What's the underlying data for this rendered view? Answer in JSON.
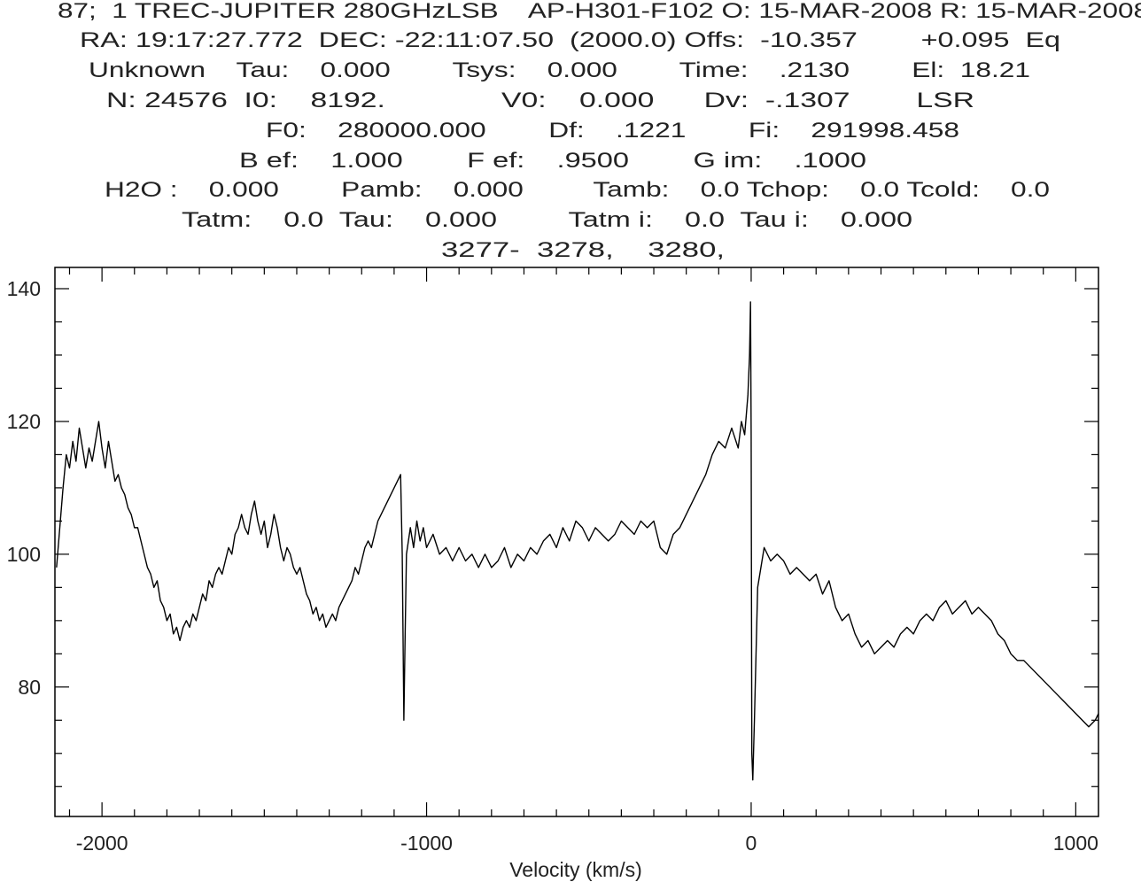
{
  "chart_data": {
    "type": "line",
    "header": [
      "87;  1 TREC-JUPITER 280GHzLSB    AP-H301-F102 O: 15-MAR-2008 R: 15-MAR-2008",
      "RA: 19:17:27.772  DEC: -22:11:07.50  (2000.0) Offs:  -10.357        +0.095  Eq",
      "Unknown    Tau:    0.000        Tsys:    0.000        Time:    .2130        El:  18.21",
      "N: 24576  I0:    8192.              V0:    0.000      Dv:  -.1307        LSR",
      "F0:    280000.000        Df:    .1221        Fi:    291998.458",
      "B ef:    1.000        F ef:    .9500        G im:    .1000",
      "H2O :    0.000        Pamb:    0.000         Tamb:    0.0 Tchop:    0.0 Tcold:    0.0",
      "Tatm:    0.0  Tau:    0.000         Tatm i:    0.0  Tau i:    0.000",
      "3277-  3278,    3280,"
    ],
    "x_label": "Velocity (km/s)",
    "xlim": [
      -2145,
      1070
    ],
    "ylim": [
      60.5,
      143.2
    ],
    "xticks": [
      -2000,
      -1000,
      0,
      1000
    ],
    "yticks": [
      80,
      100,
      120,
      140
    ],
    "xminorticks": [
      -2100,
      -1900,
      -1800,
      -1700,
      -1600,
      -1500,
      -1400,
      -1300,
      -1200,
      -1100,
      -900,
      -800,
      -700,
      -600,
      -500,
      -400,
      -300,
      -200,
      -100,
      100,
      200,
      300,
      400,
      500,
      600,
      700,
      800,
      900
    ],
    "yminorticks": [
      65,
      70,
      75,
      85,
      90,
      95,
      105,
      110,
      115,
      125,
      130,
      135
    ],
    "x": [
      -2140,
      -2130,
      -2120,
      -2110,
      -2100,
      -2090,
      -2080,
      -2070,
      -2060,
      -2050,
      -2040,
      -2030,
      -2020,
      -2010,
      -2000,
      -1990,
      -1980,
      -1970,
      -1960,
      -1950,
      -1940,
      -1930,
      -1920,
      -1910,
      -1900,
      -1890,
      -1880,
      -1870,
      -1860,
      -1850,
      -1840,
      -1830,
      -1820,
      -1810,
      -1800,
      -1790,
      -1780,
      -1770,
      -1760,
      -1750,
      -1740,
      -1730,
      -1720,
      -1710,
      -1700,
      -1690,
      -1680,
      -1670,
      -1660,
      -1650,
      -1640,
      -1630,
      -1620,
      -1610,
      -1600,
      -1590,
      -1580,
      -1570,
      -1560,
      -1550,
      -1540,
      -1530,
      -1520,
      -1510,
      -1500,
      -1490,
      -1480,
      -1470,
      -1460,
      -1450,
      -1440,
      -1430,
      -1420,
      -1410,
      -1400,
      -1390,
      -1380,
      -1370,
      -1360,
      -1350,
      -1340,
      -1330,
      -1320,
      -1310,
      -1300,
      -1290,
      -1280,
      -1270,
      -1260,
      -1250,
      -1240,
      -1230,
      -1220,
      -1210,
      -1200,
      -1190,
      -1180,
      -1170,
      -1160,
      -1150,
      -1140,
      -1130,
      -1120,
      -1110,
      -1100,
      -1090,
      -1080,
      -1075,
      -1070,
      -1066,
      -1062,
      -1050,
      -1040,
      -1030,
      -1020,
      -1010,
      -1000,
      -980,
      -960,
      -940,
      -920,
      -900,
      -880,
      -860,
      -840,
      -820,
      -800,
      -780,
      -760,
      -740,
      -720,
      -700,
      -680,
      -660,
      -640,
      -620,
      -600,
      -580,
      -560,
      -540,
      -520,
      -500,
      -480,
      -460,
      -440,
      -420,
      -400,
      -380,
      -360,
      -340,
      -320,
      -300,
      -280,
      -260,
      -240,
      -220,
      -200,
      -180,
      -160,
      -140,
      -120,
      -100,
      -80,
      -60,
      -40,
      -30,
      -20,
      -10,
      -5,
      -2,
      0,
      2,
      5,
      10,
      15,
      20,
      30,
      40,
      60,
      80,
      100,
      120,
      140,
      160,
      180,
      200,
      220,
      240,
      260,
      280,
      300,
      320,
      340,
      360,
      380,
      400,
      420,
      440,
      460,
      480,
      500,
      520,
      540,
      560,
      580,
      600,
      620,
      640,
      660,
      680,
      700,
      720,
      740,
      760,
      780,
      800,
      820,
      840,
      860,
      880,
      900,
      920,
      940,
      960,
      980,
      1000,
      1020,
      1040,
      1060,
      1070
    ],
    "series": [
      {
        "color": "#000000",
        "values": [
          98,
          104,
          110,
          115,
          113,
          117,
          114,
          119,
          116,
          113,
          116,
          114,
          117,
          120,
          116,
          113,
          117,
          114,
          111,
          112,
          110,
          109,
          107,
          106,
          104,
          104,
          102,
          100,
          98,
          97,
          95,
          96,
          93,
          92,
          90,
          91,
          88,
          89,
          87,
          89,
          90,
          89,
          91,
          90,
          92,
          94,
          93,
          96,
          95,
          97,
          98,
          97,
          99,
          101,
          100,
          103,
          104,
          106,
          104,
          103,
          106,
          108,
          105,
          103,
          105,
          101,
          103,
          106,
          104,
          101,
          99,
          101,
          100,
          98,
          97,
          98,
          96,
          94,
          93,
          91,
          92,
          90,
          91,
          89,
          90,
          91,
          90,
          92,
          93,
          94,
          95,
          96,
          98,
          97,
          99,
          101,
          102,
          101,
          103,
          105,
          106,
          107,
          108,
          109,
          110,
          111,
          112,
          100,
          75,
          88,
          100,
          104,
          101,
          105,
          102,
          104,
          101,
          103,
          100,
          101,
          99,
          101,
          99,
          100,
          98,
          100,
          98,
          99,
          101,
          98,
          100,
          99,
          101,
          100,
          102,
          103,
          101,
          104,
          102,
          105,
          104,
          102,
          104,
          103,
          102,
          103,
          105,
          104,
          103,
          105,
          104,
          105,
          101,
          100,
          103,
          104,
          106,
          108,
          110,
          112,
          115,
          117,
          116,
          119,
          116,
          120,
          118,
          124,
          130,
          138,
          118,
          70,
          66,
          75,
          85,
          95,
          98,
          101,
          99,
          100,
          99,
          97,
          98,
          97,
          96,
          97,
          94,
          96,
          92,
          90,
          91,
          88,
          86,
          87,
          85,
          86,
          87,
          86,
          88,
          89,
          88,
          90,
          91,
          90,
          92,
          93,
          91,
          92,
          93,
          91,
          92,
          91,
          90,
          88,
          87,
          85,
          84,
          84,
          83,
          82,
          81,
          80,
          79,
          78,
          77,
          76,
          75,
          74,
          75,
          76
        ]
      }
    ]
  }
}
